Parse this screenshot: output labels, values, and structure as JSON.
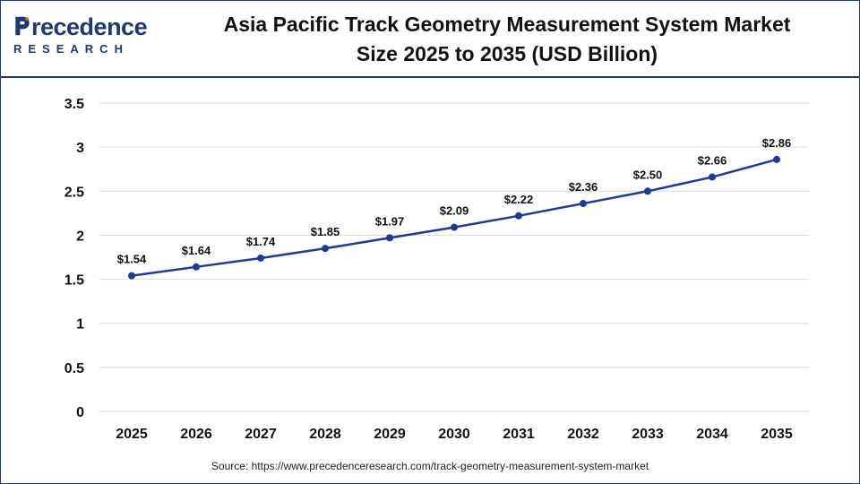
{
  "header": {
    "logo_top": "recedence",
    "logo_bottom": "RESEARCH",
    "title_line1": "Asia Pacific Track Geometry Measurement System Market",
    "title_line2": "Size 2025 to 2035 (USD Billion)"
  },
  "footer": {
    "source": "Source: https://www.precedenceresearch.com/track-geometry-measurement-system-market"
  },
  "colors": {
    "line": "#1f3a8f",
    "grid": "#d9d9d9",
    "brand": "#1f3a6e"
  },
  "chart_data": {
    "type": "line",
    "title": "Asia Pacific Track Geometry Measurement System Market Size 2025 to 2035 (USD Billion)",
    "xlabel": "",
    "ylabel": "",
    "categories": [
      "2025",
      "2026",
      "2027",
      "2028",
      "2029",
      "2030",
      "2031",
      "2032",
      "2033",
      "2034",
      "2035"
    ],
    "values": [
      1.54,
      1.64,
      1.74,
      1.85,
      1.97,
      2.09,
      2.22,
      2.36,
      2.5,
      2.66,
      2.86
    ],
    "data_labels": [
      "$1.54",
      "$1.64",
      "$1.74",
      "$1.85",
      "$1.97",
      "$2.09",
      "$2.22",
      "$2.36",
      "$2.50",
      "$2.66",
      "$2.86"
    ],
    "yticks": [
      "0",
      "0.5",
      "1",
      "1.5",
      "2",
      "2.5",
      "3",
      "3.5"
    ],
    "ylim": [
      0,
      3.5
    ],
    "grid": true,
    "legend": "none"
  }
}
